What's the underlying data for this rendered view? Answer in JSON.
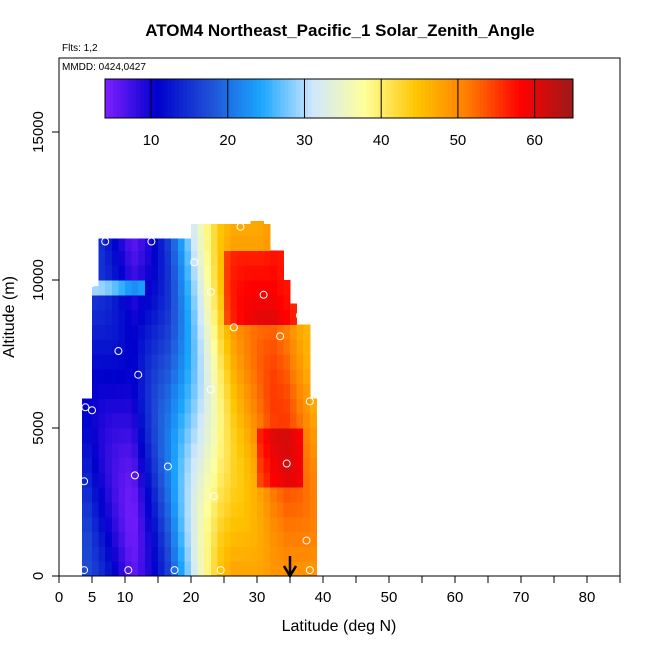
{
  "chart_data": {
    "type": "heatmap",
    "title": "ATOM4 Northeast_Pacific_1 Solar_Zenith_Angle",
    "flights_label": "Flts: 1,2",
    "dates_label": "MMDD: 0424,0427",
    "xlabel": "Latitude (deg N)",
    "ylabel": "Altitude (m)",
    "xlim": [
      0,
      85
    ],
    "ylim": [
      0,
      17500
    ],
    "x_ticks_major": [
      0,
      10,
      20,
      30,
      40,
      50,
      60,
      70,
      80
    ],
    "x_ticks_minor": [
      5,
      15,
      25,
      35,
      45,
      55,
      65,
      75,
      85
    ],
    "x_tick_labels": [
      "0",
      "5",
      "10",
      "20",
      "30",
      "40",
      "50",
      "60",
      "70",
      "80"
    ],
    "x_tick_label_values": [
      0,
      5,
      10,
      20,
      30,
      40,
      50,
      60,
      70,
      80
    ],
    "y_ticks": [
      0,
      5000,
      10000,
      15000
    ],
    "y_tick_labels": [
      "0",
      "5000",
      "10000",
      "15000"
    ],
    "colorbar": {
      "range": [
        4,
        65
      ],
      "ticks": [
        10,
        20,
        30,
        40,
        50,
        60
      ],
      "tick_labels": [
        "10",
        "20",
        "30",
        "40",
        "50",
        "60"
      ],
      "colors": [
        "#7f1fff",
        "#0000cc",
        "#1f4fd6",
        "#1aa6ff",
        "#cfe8ff",
        "#ffff99",
        "#ffc400",
        "#ff7a00",
        "#ff0000",
        "#9c1a1a"
      ]
    },
    "marker_latitude": 35,
    "z": {
      "lat_edges": [
        3.5,
        5,
        6,
        7,
        8,
        9,
        10,
        11,
        12,
        13,
        14,
        15,
        16,
        17,
        18,
        19,
        20,
        21,
        22,
        23,
        24,
        25,
        26,
        27,
        28,
        29,
        30,
        31,
        32,
        33,
        34,
        35,
        36,
        37,
        38,
        39
      ],
      "alt_edges": [
        0,
        500,
        1000,
        1500,
        2000,
        2500,
        3000,
        3500,
        4000,
        4500,
        5000,
        5500,
        6000,
        6500,
        7000,
        7500,
        8000,
        8500,
        9000,
        9500,
        10000,
        10500,
        11000,
        11500,
        12000
      ],
      "alt_top_by_lat": [
        6000,
        9800,
        11400,
        11400,
        11400,
        11400,
        11400,
        11400,
        11400,
        11400,
        11400,
        11400,
        11400,
        11400,
        11400,
        11400,
        11900,
        11900,
        11900,
        11900,
        11900,
        11900,
        11900,
        11900,
        11900,
        12300,
        12300,
        11900,
        11000,
        11000,
        10000,
        9200,
        8500,
        8500,
        6000
      ],
      "base_by_lat": [
        14,
        13,
        12,
        11,
        10,
        9,
        8,
        8,
        10,
        12,
        14,
        16,
        18,
        21,
        24,
        27,
        30,
        33,
        36,
        39,
        42,
        44,
        46,
        47,
        48,
        49,
        50,
        51,
        52,
        52,
        52,
        51,
        50,
        49,
        48
      ]
    },
    "observations": [
      {
        "lat": 3.8,
        "alt": 200
      },
      {
        "lat": 3.8,
        "alt": 3200
      },
      {
        "lat": 4.0,
        "alt": 5700
      },
      {
        "lat": 5.0,
        "alt": 5600
      },
      {
        "lat": 5.0,
        "alt": 9900
      },
      {
        "lat": 7.0,
        "alt": 11300
      },
      {
        "lat": 9.0,
        "alt": 7600
      },
      {
        "lat": 10.5,
        "alt": 200
      },
      {
        "lat": 11.5,
        "alt": 3400
      },
      {
        "lat": 12.0,
        "alt": 6800
      },
      {
        "lat": 14.0,
        "alt": 11300
      },
      {
        "lat": 16.5,
        "alt": 3700
      },
      {
        "lat": 17.5,
        "alt": 200
      },
      {
        "lat": 20.5,
        "alt": 10600
      },
      {
        "lat": 23.0,
        "alt": 6300
      },
      {
        "lat": 23.0,
        "alt": 9600
      },
      {
        "lat": 23.5,
        "alt": 2700
      },
      {
        "lat": 24.5,
        "alt": 200
      },
      {
        "lat": 26.5,
        "alt": 8400
      },
      {
        "lat": 27.5,
        "alt": 11800
      },
      {
        "lat": 31.0,
        "alt": 9500
      },
      {
        "lat": 33.5,
        "alt": 8100
      },
      {
        "lat": 34.5,
        "alt": 3800
      },
      {
        "lat": 36.5,
        "alt": 8800
      },
      {
        "lat": 37.5,
        "alt": 1200
      },
      {
        "lat": 38.0,
        "alt": 5900
      },
      {
        "lat": 38.0,
        "alt": 200
      }
    ]
  }
}
